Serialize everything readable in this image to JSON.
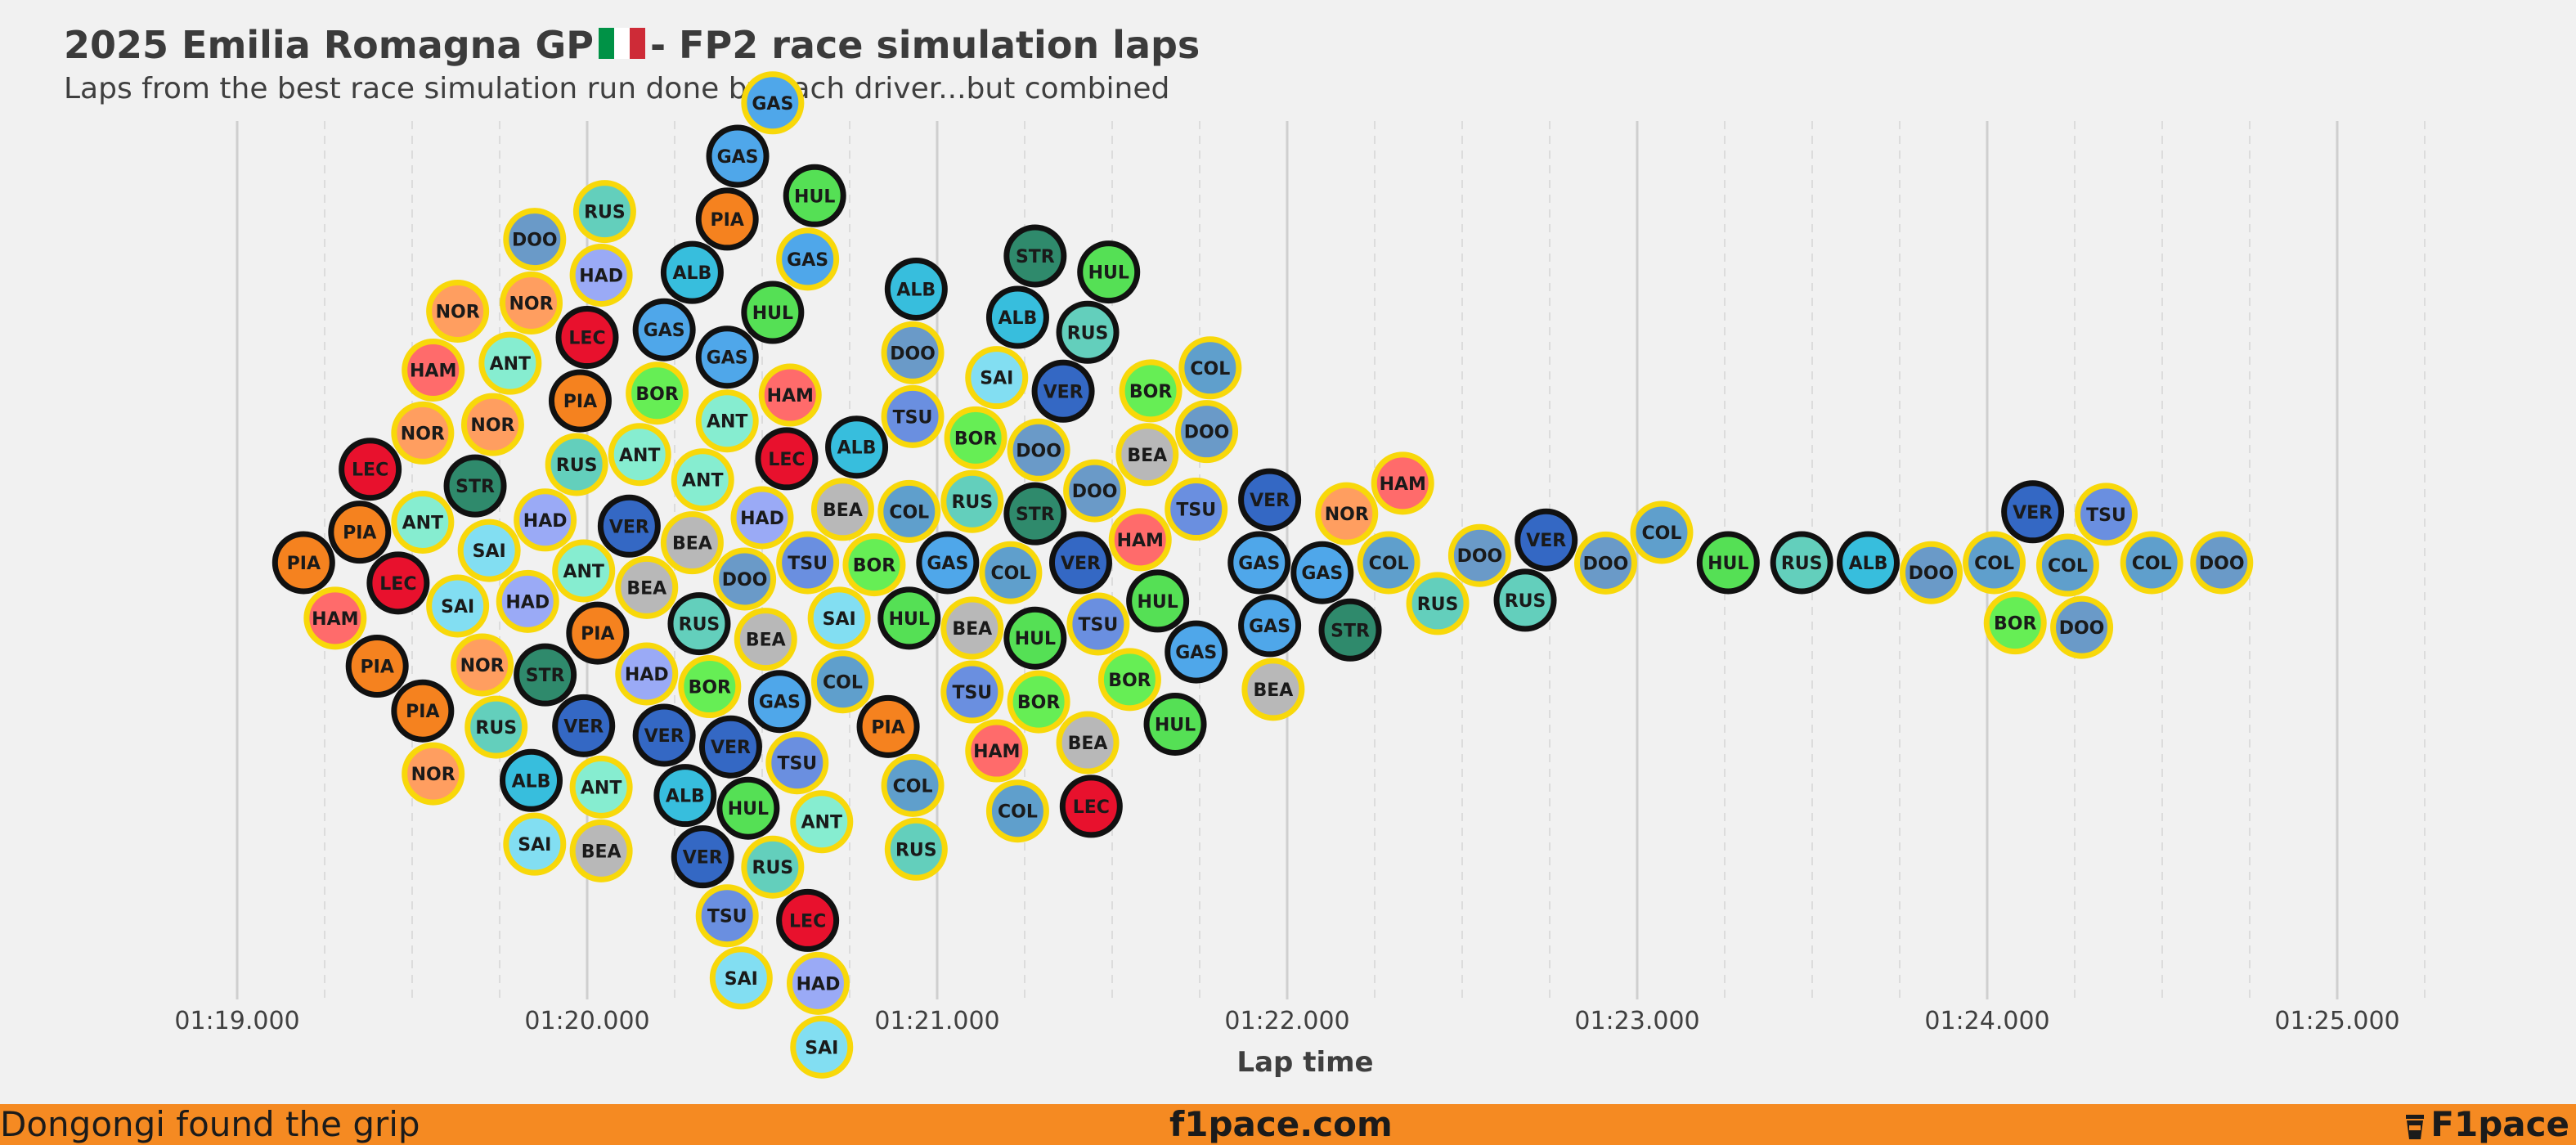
{
  "header": {
    "title_prefix": "2025 Emilia Romagna GP",
    "title_suffix": "- FP2 race simulation laps",
    "subtitle": "Laps from the best race simulation run done by each driver...but combined",
    "flag_icon": "italy-flag-icon",
    "flag_colors": [
      "#009246",
      "#ffffff",
      "#ce2b37"
    ]
  },
  "footer": {
    "left": "Dongongi found the grip",
    "center": "f1pace.com",
    "right": "F1pace",
    "right_icon": "coffee-cup-icon",
    "background": "#f58a22"
  },
  "chart_data": {
    "type": "scatter",
    "xlabel": "Lap time",
    "xlim": [
      78.0,
      85.5
    ],
    "x_ticks": [
      79,
      80,
      81,
      82,
      83,
      84,
      85
    ],
    "x_tick_labels": [
      "01:19.000",
      "01:20.000",
      "01:21.000",
      "01:22.000",
      "01:23.000",
      "01:24.000",
      "01:25.000"
    ],
    "minor_ticks": [
      79.25,
      79.5,
      79.75,
      80.25,
      80.5,
      80.75,
      81.25,
      81.5,
      81.75,
      82.25,
      82.5,
      82.75,
      83.25,
      83.5,
      83.75,
      84.25,
      84.5,
      84.75,
      85.25
    ],
    "grid": true,
    "driver_colors": {
      "PIA": "#f5821f",
      "NOR": "#ff9e60",
      "LEC": "#e8112d",
      "HAM": "#ff6b6b",
      "VER": "#3468c4",
      "TSU": "#6a8fe0",
      "ANT": "#86edd0",
      "RUS": "#63cfbc",
      "ALB": "#37bedd",
      "SAI": "#82def2",
      "GAS": "#4fa7ea",
      "DOO": "#6a9ac8",
      "COL": "#5f9fcc",
      "HUL": "#55e055",
      "BOR": "#66ee55",
      "STR": "#2f8a6c",
      "BEA": "#b8b8b8",
      "HAD": "#9aaaf6"
    },
    "rings": {
      "yellow": "#f8d80a",
      "black": "#111111"
    },
    "points": [
      {
        "d": "PIA",
        "x": 79.19,
        "r": "black"
      },
      {
        "d": "HAM",
        "x": 79.28,
        "r": "yellow"
      },
      {
        "d": "PIA",
        "x": 79.35,
        "r": "black"
      },
      {
        "d": "LEC",
        "x": 79.38,
        "r": "black"
      },
      {
        "d": "PIA",
        "x": 79.4,
        "r": "black"
      },
      {
        "d": "LEC",
        "x": 79.46,
        "r": "black"
      },
      {
        "d": "ANT",
        "x": 79.53,
        "r": "yellow"
      },
      {
        "d": "NOR",
        "x": 79.53,
        "r": "yellow"
      },
      {
        "d": "PIA",
        "x": 79.53,
        "r": "black"
      },
      {
        "d": "HAM",
        "x": 79.56,
        "r": "yellow"
      },
      {
        "d": "NOR",
        "x": 79.56,
        "r": "yellow"
      },
      {
        "d": "SAI",
        "x": 79.63,
        "r": "yellow"
      },
      {
        "d": "NOR",
        "x": 79.63,
        "r": "yellow"
      },
      {
        "d": "STR",
        "x": 79.68,
        "r": "black"
      },
      {
        "d": "NOR",
        "x": 79.7,
        "r": "yellow"
      },
      {
        "d": "NOR",
        "x": 79.73,
        "r": "yellow"
      },
      {
        "d": "RUS",
        "x": 79.74,
        "r": "yellow"
      },
      {
        "d": "SAI",
        "x": 79.72,
        "r": "yellow"
      },
      {
        "d": "ANT",
        "x": 79.78,
        "r": "yellow"
      },
      {
        "d": "HAD",
        "x": 79.83,
        "r": "yellow"
      },
      {
        "d": "SAI",
        "x": 79.85,
        "r": "yellow"
      },
      {
        "d": "HAD",
        "x": 79.88,
        "r": "yellow"
      },
      {
        "d": "ALB",
        "x": 79.84,
        "r": "black"
      },
      {
        "d": "DOO",
        "x": 79.85,
        "r": "yellow"
      },
      {
        "d": "STR",
        "x": 79.88,
        "r": "black"
      },
      {
        "d": "NOR",
        "x": 79.84,
        "r": "yellow"
      },
      {
        "d": "ANT",
        "x": 79.99,
        "r": "yellow"
      },
      {
        "d": "VER",
        "x": 79.99,
        "r": "black"
      },
      {
        "d": "RUS",
        "x": 79.97,
        "r": "yellow"
      },
      {
        "d": "PIA",
        "x": 79.98,
        "r": "black"
      },
      {
        "d": "LEC",
        "x": 80.0,
        "r": "black"
      },
      {
        "d": "PIA",
        "x": 80.03,
        "r": "black"
      },
      {
        "d": "ANT",
        "x": 80.04,
        "r": "yellow"
      },
      {
        "d": "HAD",
        "x": 80.04,
        "r": "yellow"
      },
      {
        "d": "RUS",
        "x": 80.05,
        "r": "yellow"
      },
      {
        "d": "BEA",
        "x": 80.04,
        "r": "yellow"
      },
      {
        "d": "VER",
        "x": 80.12,
        "r": "black"
      },
      {
        "d": "ANT",
        "x": 80.15,
        "r": "yellow"
      },
      {
        "d": "BEA",
        "x": 80.17,
        "r": "yellow"
      },
      {
        "d": "HAD",
        "x": 80.17,
        "r": "yellow"
      },
      {
        "d": "BOR",
        "x": 80.2,
        "r": "yellow"
      },
      {
        "d": "VER",
        "x": 80.22,
        "r": "black"
      },
      {
        "d": "GAS",
        "x": 80.22,
        "r": "black"
      },
      {
        "d": "BEA",
        "x": 80.3,
        "r": "yellow"
      },
      {
        "d": "ANT",
        "x": 80.33,
        "r": "yellow"
      },
      {
        "d": "ALB",
        "x": 80.3,
        "r": "black"
      },
      {
        "d": "RUS",
        "x": 80.32,
        "r": "black"
      },
      {
        "d": "BOR",
        "x": 80.35,
        "r": "yellow"
      },
      {
        "d": "VER",
        "x": 80.33,
        "r": "black"
      },
      {
        "d": "ALB",
        "x": 80.28,
        "r": "black"
      },
      {
        "d": "ANT",
        "x": 80.4,
        "r": "yellow"
      },
      {
        "d": "SAI",
        "x": 80.44,
        "r": "yellow"
      },
      {
        "d": "GAS",
        "x": 80.43,
        "r": "black"
      },
      {
        "d": "VER",
        "x": 80.41,
        "r": "black"
      },
      {
        "d": "GAS",
        "x": 80.4,
        "r": "black"
      },
      {
        "d": "PIA",
        "x": 80.4,
        "r": "black"
      },
      {
        "d": "TSU",
        "x": 80.4,
        "r": "yellow"
      },
      {
        "d": "HUL",
        "x": 80.46,
        "r": "black"
      },
      {
        "d": "DOO",
        "x": 80.45,
        "r": "yellow"
      },
      {
        "d": "HAD",
        "x": 80.5,
        "r": "yellow"
      },
      {
        "d": "BEA",
        "x": 80.51,
        "r": "yellow"
      },
      {
        "d": "HUL",
        "x": 80.53,
        "r": "black"
      },
      {
        "d": "RUS",
        "x": 80.53,
        "r": "yellow"
      },
      {
        "d": "GAS",
        "x": 80.53,
        "r": "yellow"
      },
      {
        "d": "GAS",
        "x": 80.55,
        "r": "black"
      },
      {
        "d": "LEC",
        "x": 80.57,
        "r": "black"
      },
      {
        "d": "TSU",
        "x": 80.6,
        "r": "yellow"
      },
      {
        "d": "HAM",
        "x": 80.58,
        "r": "yellow"
      },
      {
        "d": "TSU",
        "x": 80.63,
        "r": "yellow"
      },
      {
        "d": "HUL",
        "x": 80.65,
        "r": "black"
      },
      {
        "d": "GAS",
        "x": 80.63,
        "r": "yellow"
      },
      {
        "d": "LEC",
        "x": 80.63,
        "r": "black"
      },
      {
        "d": "HAD",
        "x": 80.66,
        "r": "yellow"
      },
      {
        "d": "ANT",
        "x": 80.67,
        "r": "yellow"
      },
      {
        "d": "BEA",
        "x": 80.73,
        "r": "yellow"
      },
      {
        "d": "SAI",
        "x": 80.67,
        "r": "yellow"
      },
      {
        "d": "SAI",
        "x": 80.72,
        "r": "yellow"
      },
      {
        "d": "COL",
        "x": 80.73,
        "r": "yellow"
      },
      {
        "d": "ALB",
        "x": 80.77,
        "r": "black"
      },
      {
        "d": "BOR",
        "x": 80.82,
        "r": "yellow"
      },
      {
        "d": "PIA",
        "x": 80.86,
        "r": "black"
      },
      {
        "d": "TSU",
        "x": 80.93,
        "r": "yellow"
      },
      {
        "d": "COL",
        "x": 80.92,
        "r": "yellow"
      },
      {
        "d": "HUL",
        "x": 80.92,
        "r": "black"
      },
      {
        "d": "ALB",
        "x": 80.94,
        "r": "black"
      },
      {
        "d": "DOO",
        "x": 80.93,
        "r": "yellow"
      },
      {
        "d": "RUS",
        "x": 80.94,
        "r": "yellow"
      },
      {
        "d": "COL",
        "x": 80.93,
        "r": "yellow"
      },
      {
        "d": "GAS",
        "x": 81.03,
        "r": "black"
      },
      {
        "d": "RUS",
        "x": 81.1,
        "r": "yellow"
      },
      {
        "d": "BEA",
        "x": 81.1,
        "r": "yellow"
      },
      {
        "d": "BOR",
        "x": 81.11,
        "r": "yellow"
      },
      {
        "d": "TSU",
        "x": 81.1,
        "r": "yellow"
      },
      {
        "d": "SAI",
        "x": 81.17,
        "r": "yellow"
      },
      {
        "d": "ALB",
        "x": 81.23,
        "r": "black"
      },
      {
        "d": "COL",
        "x": 81.23,
        "r": "yellow"
      },
      {
        "d": "HAM",
        "x": 81.17,
        "r": "yellow"
      },
      {
        "d": "COL",
        "x": 81.21,
        "r": "yellow"
      },
      {
        "d": "DOO",
        "x": 81.29,
        "r": "yellow"
      },
      {
        "d": "STR",
        "x": 81.28,
        "r": "black"
      },
      {
        "d": "BOR",
        "x": 81.29,
        "r": "yellow"
      },
      {
        "d": "HUL",
        "x": 81.28,
        "r": "black"
      },
      {
        "d": "STR",
        "x": 81.28,
        "r": "black"
      },
      {
        "d": "VER",
        "x": 81.41,
        "r": "black"
      },
      {
        "d": "HUL",
        "x": 81.49,
        "r": "black"
      },
      {
        "d": "BEA",
        "x": 81.43,
        "r": "yellow"
      },
      {
        "d": "VER",
        "x": 81.36,
        "r": "black"
      },
      {
        "d": "DOO",
        "x": 81.45,
        "r": "yellow"
      },
      {
        "d": "TSU",
        "x": 81.46,
        "r": "yellow"
      },
      {
        "d": "LEC",
        "x": 81.44,
        "r": "black"
      },
      {
        "d": "RUS",
        "x": 81.43,
        "r": "black"
      },
      {
        "d": "BOR",
        "x": 81.55,
        "r": "yellow"
      },
      {
        "d": "HUL",
        "x": 81.63,
        "r": "black"
      },
      {
        "d": "HUL",
        "x": 81.68,
        "r": "black"
      },
      {
        "d": "BOR",
        "x": 81.61,
        "r": "yellow"
      },
      {
        "d": "BEA",
        "x": 81.6,
        "r": "yellow"
      },
      {
        "d": "HAM",
        "x": 81.58,
        "r": "yellow"
      },
      {
        "d": "TSU",
        "x": 81.74,
        "r": "yellow"
      },
      {
        "d": "COL",
        "x": 81.78,
        "r": "yellow"
      },
      {
        "d": "DOO",
        "x": 81.77,
        "r": "yellow"
      },
      {
        "d": "GAS",
        "x": 81.74,
        "r": "black"
      },
      {
        "d": "GAS",
        "x": 81.95,
        "r": "black"
      },
      {
        "d": "BEA",
        "x": 81.96,
        "r": "yellow"
      },
      {
        "d": "VER",
        "x": 81.95,
        "r": "black"
      },
      {
        "d": "GAS",
        "x": 81.92,
        "r": "black"
      },
      {
        "d": "NOR",
        "x": 82.17,
        "r": "yellow"
      },
      {
        "d": "STR",
        "x": 82.18,
        "r": "black"
      },
      {
        "d": "GAS",
        "x": 82.1,
        "r": "black"
      },
      {
        "d": "HAM",
        "x": 82.33,
        "r": "yellow"
      },
      {
        "d": "RUS",
        "x": 82.43,
        "r": "yellow"
      },
      {
        "d": "COL",
        "x": 82.29,
        "r": "yellow"
      },
      {
        "d": "RUS",
        "x": 82.68,
        "r": "black"
      },
      {
        "d": "DOO",
        "x": 82.55,
        "r": "yellow"
      },
      {
        "d": "VER",
        "x": 82.74,
        "r": "black"
      },
      {
        "d": "DOO",
        "x": 82.91,
        "r": "yellow"
      },
      {
        "d": "COL",
        "x": 83.07,
        "r": "yellow"
      },
      {
        "d": "HUL",
        "x": 83.26,
        "r": "black"
      },
      {
        "d": "RUS",
        "x": 83.47,
        "r": "black"
      },
      {
        "d": "ALB",
        "x": 83.66,
        "r": "black"
      },
      {
        "d": "DOO",
        "x": 83.84,
        "r": "yellow"
      },
      {
        "d": "BOR",
        "x": 84.08,
        "r": "yellow"
      },
      {
        "d": "COL",
        "x": 84.02,
        "r": "yellow"
      },
      {
        "d": "VER",
        "x": 84.13,
        "r": "black"
      },
      {
        "d": "COL",
        "x": 84.23,
        "r": "yellow"
      },
      {
        "d": "DOO",
        "x": 84.27,
        "r": "yellow"
      },
      {
        "d": "TSU",
        "x": 84.34,
        "r": "yellow"
      },
      {
        "d": "COL",
        "x": 84.47,
        "r": "yellow"
      },
      {
        "d": "DOO",
        "x": 84.67,
        "r": "yellow"
      }
    ]
  }
}
